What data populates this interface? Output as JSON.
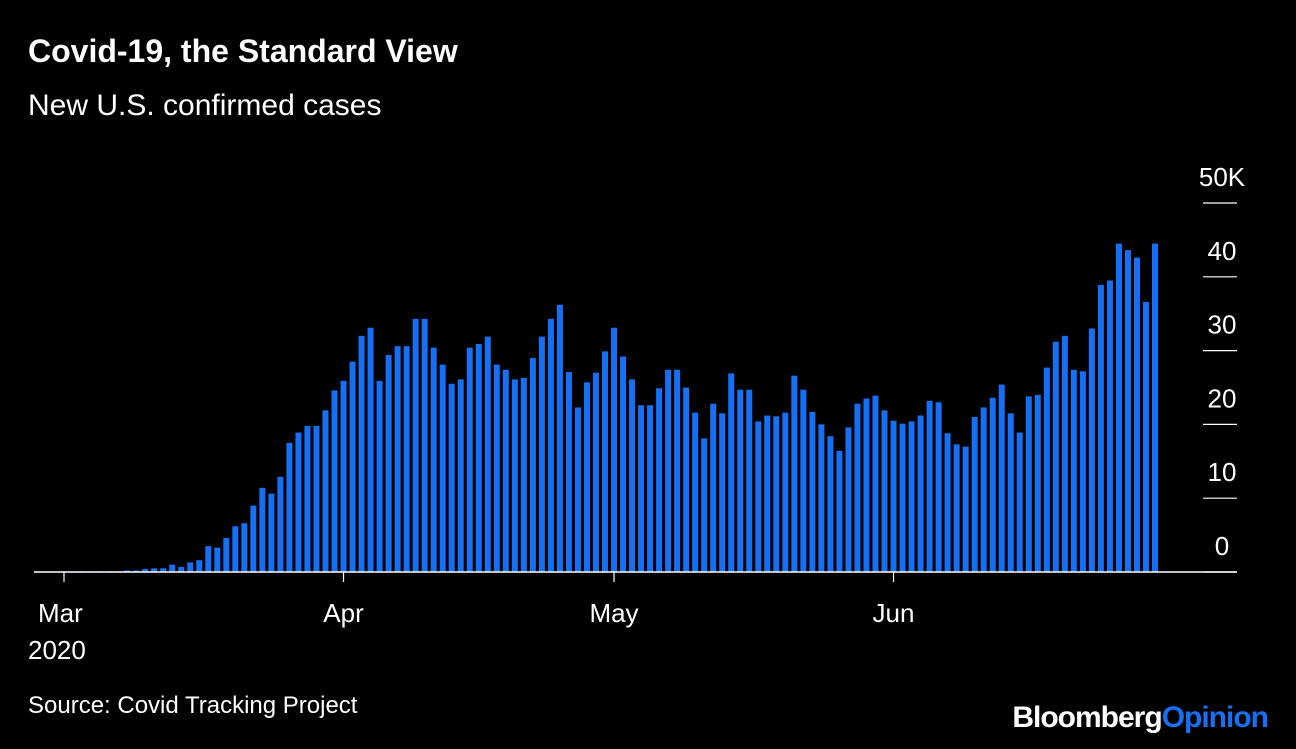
{
  "chart_data": {
    "type": "bar",
    "title": "Covid-19, the Standard View",
    "subtitle": "New U.S. confirmed cases",
    "source": "Source: Covid Tracking Project",
    "brand": {
      "name": "Bloomberg",
      "suffix": "Opinion"
    },
    "year_label": "2020",
    "color": "#1670f5",
    "ylim": [
      0,
      50
    ],
    "yticks": [
      0,
      10,
      20,
      30,
      40,
      {
        "value": 50,
        "label": "50K"
      }
    ],
    "categories": [
      "Mar",
      null,
      null,
      null,
      null,
      null,
      null,
      null,
      null,
      null,
      null,
      null,
      null,
      null,
      null,
      null,
      null,
      null,
      null,
      null,
      null,
      null,
      null,
      null,
      null,
      null,
      null,
      null,
      null,
      null,
      null,
      "Apr",
      null,
      null,
      null,
      null,
      null,
      null,
      null,
      null,
      null,
      null,
      null,
      null,
      null,
      null,
      null,
      null,
      null,
      null,
      null,
      null,
      null,
      null,
      null,
      null,
      null,
      null,
      null,
      null,
      null,
      "May",
      null,
      null,
      null,
      null,
      null,
      null,
      null,
      null,
      null,
      null,
      null,
      null,
      null,
      null,
      null,
      null,
      null,
      null,
      null,
      null,
      null,
      null,
      null,
      null,
      null,
      null,
      null,
      null,
      null,
      null,
      "Jun",
      null,
      null,
      null,
      null,
      null,
      null,
      null,
      null,
      null,
      null,
      null,
      null,
      null,
      null,
      null,
      null,
      null,
      null,
      null,
      null,
      null,
      null,
      null,
      null,
      null,
      null,
      null,
      null,
      null
    ],
    "values": [
      0.0,
      0.0,
      0.0,
      0.1,
      0.1,
      0.1,
      0.1,
      0.2,
      0.2,
      0.4,
      0.5,
      0.5,
      1.0,
      0.7,
      1.3,
      1.6,
      3.5,
      3.3,
      4.6,
      6.2,
      6.6,
      9.0,
      11.4,
      10.6,
      12.9,
      17.5,
      18.9,
      19.8,
      19.8,
      21.9,
      24.6,
      25.9,
      28.5,
      32.0,
      33.1,
      25.9,
      29.4,
      30.6,
      30.6,
      34.3,
      34.3,
      30.4,
      28.1,
      25.5,
      26.1,
      30.4,
      30.9,
      31.9,
      28.1,
      27.4,
      26.1,
      26.3,
      29.0,
      31.9,
      34.3,
      36.2,
      27.1,
      22.3,
      25.7,
      27.0,
      29.9,
      33.1,
      29.2,
      26.1,
      22.6,
      22.6,
      24.9,
      27.4,
      27.4,
      25.0,
      21.6,
      18.1,
      22.8,
      21.5,
      26.9,
      24.7,
      24.7,
      20.4,
      21.2,
      21.1,
      21.6,
      26.6,
      24.7,
      21.7,
      20.0,
      18.4,
      16.4,
      19.6,
      22.8,
      23.5,
      23.9,
      21.9,
      20.5,
      20.1,
      20.4,
      21.2,
      23.2,
      23.0,
      18.8,
      17.3,
      17.0,
      21.0,
      22.3,
      23.6,
      25.4,
      21.5,
      18.9,
      23.8,
      24.0,
      27.7,
      31.2,
      32.0,
      27.4,
      27.2,
      33.0,
      38.9,
      39.5,
      44.5,
      43.6,
      42.6,
      36.6,
      44.5
    ]
  }
}
